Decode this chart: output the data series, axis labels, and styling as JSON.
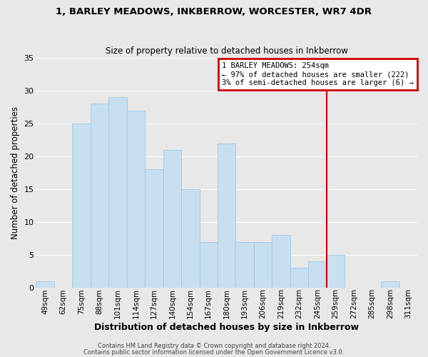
{
  "title": "1, BARLEY MEADOWS, INKBERROW, WORCESTER, WR7 4DR",
  "subtitle": "Size of property relative to detached houses in Inkberrow",
  "xlabel": "Distribution of detached houses by size in Inkberrow",
  "ylabel": "Number of detached properties",
  "footer1": "Contains HM Land Registry data © Crown copyright and database right 2024.",
  "footer2": "Contains public sector information licensed under the Open Government Licence v3.0.",
  "bar_color": "#c8dff0",
  "bar_edge_color": "#a0c8e8",
  "grid_color": "#ffffff",
  "background_color": "#e8e8e8",
  "plot_bg_color": "#e8e8e8",
  "categories": [
    "49sqm",
    "62sqm",
    "75sqm",
    "88sqm",
    "101sqm",
    "114sqm",
    "127sqm",
    "140sqm",
    "154sqm",
    "167sqm",
    "180sqm",
    "193sqm",
    "206sqm",
    "219sqm",
    "232sqm",
    "245sqm",
    "259sqm",
    "272sqm",
    "285sqm",
    "298sqm",
    "311sqm"
  ],
  "values": [
    1,
    0,
    25,
    28,
    29,
    27,
    18,
    21,
    15,
    7,
    22,
    7,
    7,
    8,
    3,
    4,
    5,
    0,
    0,
    1,
    0
  ],
  "ylim": [
    0,
    35
  ],
  "yticks": [
    0,
    5,
    10,
    15,
    20,
    25,
    30,
    35
  ],
  "property_line_x": 15.5,
  "property_line_color": "#cc0000",
  "annotation_title": "1 BARLEY MEADOWS: 254sqm",
  "annotation_left": "← 97% of detached houses are smaller (222)",
  "annotation_right": "3% of semi-detached houses are larger (6) →",
  "annotation_box_color": "#cc0000",
  "annotation_text_color": "#000000"
}
